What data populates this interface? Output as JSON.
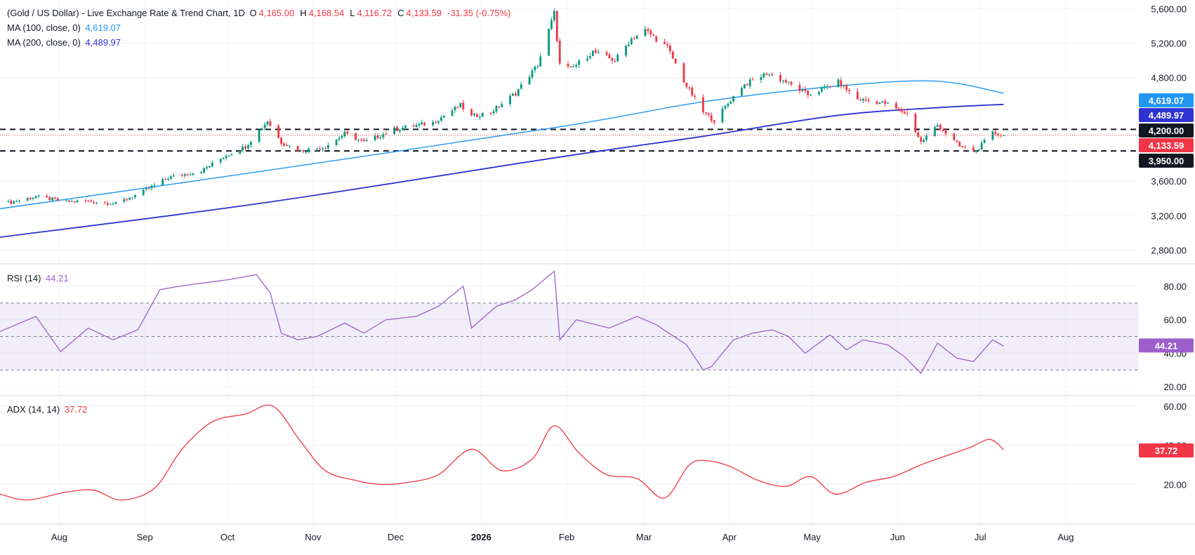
{
  "header": {
    "title": "(Gold / US Dollar) - Live Exchange Rate & Trend Chart, 1D",
    "ohlc": [
      {
        "k": "O",
        "v": "4,165.00"
      },
      {
        "k": "H",
        "v": "4,168.54"
      },
      {
        "k": "L",
        "v": "4,116.72"
      },
      {
        "k": "C",
        "v": "4,133.59"
      }
    ],
    "change": "-31.35 (-0.75%)",
    "ma100_label": "MA (100, close, 0)",
    "ma100_value": "4,619.07",
    "ma200_label": "MA (200, close, 0)",
    "ma200_value": "4,489.97"
  },
  "rsi_legend": {
    "label": "RSI (14)",
    "value": "44.21"
  },
  "adx_legend": {
    "label": "ADX (14, 14)",
    "value": "37.72"
  },
  "colors": {
    "up": "#089981",
    "down": "#f23645",
    "ma100": "#2196f3",
    "ma200": "#2e33d1",
    "rsi": "#9c5fcb",
    "adx": "#f23645",
    "grid": "#f0f3fa",
    "text": "#131722"
  },
  "chart_data": [
    {
      "type": "candlestick",
      "x_ticks": [
        "Aug",
        "Sep",
        "Oct",
        "Nov",
        "Dec",
        "2026",
        "Feb",
        "Mar",
        "Apr",
        "May",
        "Jun",
        "Jul",
        "Aug"
      ],
      "y_ticks": [
        "2,800.00",
        "3,200.00",
        "3,600.00",
        "4,200.00",
        "4,800.00",
        "5,200.00",
        "5,600.00"
      ],
      "y_range": [
        2650,
        5700
      ],
      "x_range": [
        "2025-07-11",
        "2026-08-28"
      ],
      "price_anchors": [
        [
          "2025-07-14",
          3350
        ],
        [
          "2025-07-24",
          3420
        ],
        [
          "2025-08-04",
          3360
        ],
        [
          "2025-08-11",
          3370
        ],
        [
          "2025-08-22",
          3340
        ],
        [
          "2025-09-01",
          3480
        ],
        [
          "2025-09-10",
          3640
        ],
        [
          "2025-09-22",
          3720
        ],
        [
          "2025-10-01",
          3900
        ],
        [
          "2025-10-08",
          4000
        ],
        [
          "2025-10-16",
          4300
        ],
        [
          "2025-10-21",
          4050
        ],
        [
          "2025-10-28",
          3950
        ],
        [
          "2025-11-06",
          4000
        ],
        [
          "2025-11-13",
          4150
        ],
        [
          "2025-11-20",
          4050
        ],
        [
          "2025-12-01",
          4200
        ],
        [
          "2025-12-15",
          4280
        ],
        [
          "2025-12-25",
          4480
        ],
        [
          "2025-12-29",
          4350
        ],
        [
          "2026-01-05",
          4400
        ],
        [
          "2026-01-14",
          4620
        ],
        [
          "2026-01-22",
          4950
        ],
        [
          "2026-01-28",
          5550
        ],
        [
          "2026-01-30",
          4950
        ],
        [
          "2026-02-03",
          4900
        ],
        [
          "2026-02-11",
          5100
        ],
        [
          "2026-02-19",
          5000
        ],
        [
          "2026-02-25",
          5250
        ],
        [
          "2026-03-02",
          5350
        ],
        [
          "2026-03-10",
          5150
        ],
        [
          "2026-03-17",
          4700
        ],
        [
          "2026-03-23",
          4400
        ],
        [
          "2026-03-27",
          4300
        ],
        [
          "2026-04-06",
          4700
        ],
        [
          "2026-04-15",
          4850
        ],
        [
          "2026-04-22",
          4750
        ],
        [
          "2026-04-30",
          4600
        ],
        [
          "2026-05-11",
          4750
        ],
        [
          "2026-05-18",
          4550
        ],
        [
          "2026-05-28",
          4500
        ],
        [
          "2026-06-05",
          4380
        ],
        [
          "2026-06-10",
          4050
        ],
        [
          "2026-06-16",
          4250
        ],
        [
          "2026-06-24",
          4000
        ],
        [
          "2026-06-30",
          3950
        ],
        [
          "2026-07-06",
          4160
        ],
        [
          "2026-07-10",
          4134
        ]
      ],
      "series": [
        {
          "name": "MA (100, close, 0)",
          "x": [
            "2025-07-11",
            "2025-10-15",
            "2026-01-30",
            "2026-03-23",
            "2026-05-10",
            "2026-06-15",
            "2026-07-10"
          ],
          "values": [
            3280,
            3720,
            4230,
            4520,
            4700,
            4760,
            4619
          ]
        },
        {
          "name": "MA (200, close, 0)",
          "x": [
            "2025-07-11",
            "2025-10-15",
            "2026-01-30",
            "2026-03-23",
            "2026-05-10",
            "2026-06-15",
            "2026-07-10"
          ],
          "values": [
            2950,
            3350,
            3880,
            4120,
            4360,
            4450,
            4490
          ]
        }
      ],
      "levels": [
        {
          "value": 4200,
          "label": "4,200.00",
          "style": "dashed"
        },
        {
          "value": 3950,
          "label": "3,950.00",
          "style": "dashed"
        },
        {
          "value": 4133.59,
          "label": "4,133.59",
          "style": "dotted"
        }
      ],
      "badges": [
        {
          "label": "4,619.07",
          "value": 4619.07,
          "color": "#2196f3"
        },
        {
          "label": "4,489.97",
          "value": 4489.97,
          "color": "#2e33d1"
        },
        {
          "label": "4,200.00",
          "value": 4200,
          "color": "#131722"
        },
        {
          "label": "4,133.59",
          "value": 4133.59,
          "color": "#f23645"
        },
        {
          "label": "3,950.00",
          "value": 3950,
          "color": "#131722"
        }
      ]
    },
    {
      "type": "line",
      "name": "RSI (14)",
      "y_ticks": [
        "20.00",
        "40.00",
        "60.00",
        "80.00"
      ],
      "y_range": [
        15,
        93
      ],
      "band": [
        30,
        70
      ],
      "midline": 50,
      "x": [
        "2025-07-11",
        "2025-07-24",
        "2025-08-02",
        "2025-08-12",
        "2025-08-21",
        "2025-08-30",
        "2025-09-07",
        "2025-09-14",
        "2025-09-23",
        "2025-10-02",
        "2025-10-12",
        "2025-10-17",
        "2025-10-21",
        "2025-10-27",
        "2025-11-03",
        "2025-11-13",
        "2025-11-20",
        "2025-11-28",
        "2025-12-09",
        "2025-12-17",
        "2025-12-26",
        "2025-12-29",
        "2026-01-07",
        "2026-01-14",
        "2026-01-20",
        "2026-01-28",
        "2026-01-30",
        "2026-02-05",
        "2026-02-17",
        "2026-02-27",
        "2026-03-06",
        "2026-03-17",
        "2026-03-23",
        "2026-03-26",
        "2026-04-03",
        "2026-04-10",
        "2026-04-17",
        "2026-04-23",
        "2026-04-29",
        "2026-05-08",
        "2026-05-14",
        "2026-05-20",
        "2026-05-29",
        "2026-06-04",
        "2026-06-10",
        "2026-06-16",
        "2026-06-23",
        "2026-06-29",
        "2026-07-06",
        "2026-07-10"
      ],
      "values": [
        53,
        62,
        41,
        55,
        48,
        54,
        78,
        80,
        82,
        84,
        87,
        76,
        52,
        48,
        50,
        58,
        52,
        60,
        62,
        68,
        80,
        55,
        68,
        72,
        78,
        89,
        48,
        60,
        55,
        62,
        57,
        45,
        30,
        32,
        48,
        52,
        54,
        50,
        40,
        51,
        42,
        48,
        45,
        38,
        28,
        46,
        37,
        35,
        48,
        44.21
      ]
    },
    {
      "type": "line",
      "name": "ADX (14, 14)",
      "y_ticks": [
        "20.00",
        "40.00",
        "60.00"
      ],
      "y_range": [
        0,
        65
      ],
      "x": [
        "2025-07-11",
        "2025-07-21",
        "2025-08-04",
        "2025-08-14",
        "2025-08-24",
        "2025-09-05",
        "2025-09-15",
        "2025-09-26",
        "2025-10-08",
        "2025-10-18",
        "2025-10-28",
        "2025-11-06",
        "2025-11-17",
        "2025-11-26",
        "2025-12-06",
        "2025-12-17",
        "2025-12-29",
        "2026-01-09",
        "2026-01-20",
        "2026-01-28",
        "2026-02-06",
        "2026-02-16",
        "2026-02-27",
        "2026-03-09",
        "2026-03-18",
        "2026-03-25",
        "2026-04-02",
        "2026-04-12",
        "2026-04-22",
        "2026-05-01",
        "2026-05-10",
        "2026-05-21",
        "2026-05-31",
        "2026-06-10",
        "2026-06-20",
        "2026-06-28",
        "2026-07-05",
        "2026-07-10"
      ],
      "values": [
        15,
        12,
        16,
        17,
        12,
        18,
        38,
        52,
        56,
        60,
        42,
        27,
        22,
        20,
        21,
        25,
        38,
        27,
        33,
        50,
        36,
        25,
        23,
        13,
        30,
        32,
        29,
        22,
        19,
        24,
        15,
        21,
        24,
        30,
        35,
        39,
        43,
        37.72
      ]
    }
  ]
}
